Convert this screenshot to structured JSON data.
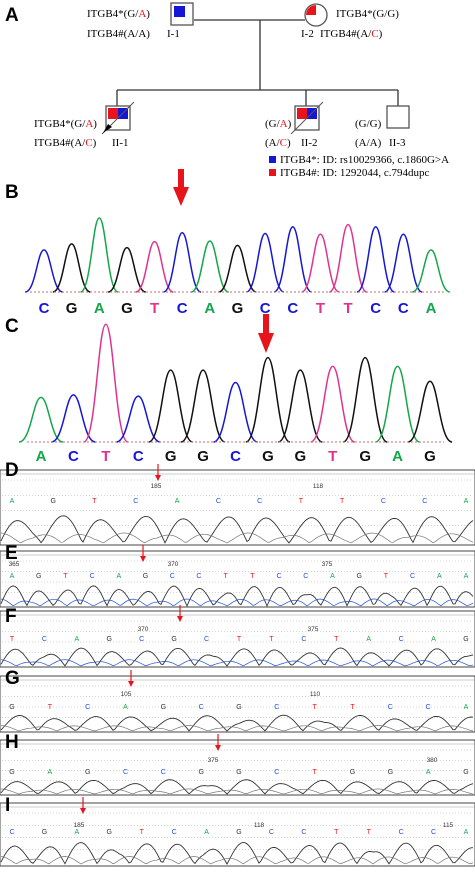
{
  "colors": {
    "red": "#e8141b",
    "blue": "#1616d6",
    "green": "#14a64a",
    "black": "#111111",
    "pink": "#e0338f",
    "c_blue": "#1f4fd6"
  },
  "panels": {
    "A": "A",
    "B": "B",
    "C": "C",
    "D": "D",
    "E": "E",
    "F": "F",
    "G": "G",
    "H": "H",
    "I": "I"
  },
  "pedigree": {
    "I1": {
      "id": "I-1",
      "l1_pre": "ITGB4*(G/",
      "l1_red": "A",
      "l1_post": ")",
      "l2_pre": "ITGB4#(A/A)",
      "l2_red": "",
      "l2_post": ""
    },
    "I2": {
      "id": "I-2",
      "l1_pre": "ITGB4*(G/G)",
      "l1_red": "",
      "l1_post": "",
      "l2_pre": "ITGB4#(A/",
      "l2_red": "C",
      "l2_post": ")"
    },
    "II1": {
      "id": "II-1",
      "l1_pre": "ITGB4*(G/",
      "l1_red": "A",
      "l1_post": ")",
      "l2_pre": "ITGB4#(A/",
      "l2_red": "C",
      "l2_post": ")"
    },
    "II2": {
      "id": "II-2",
      "l1_pre": "(G/",
      "l1_red": "A",
      "l1_post": ")",
      "l2_pre": "(A/",
      "l2_red": "C",
      "l2_post": ")"
    },
    "II3": {
      "id": "II-3",
      "l1": "(G/G)",
      "l2": "(A/A)"
    },
    "legend": [
      {
        "color": "blue",
        "text": "ITGB4*: ID: rs10029366, c.1860G>A"
      },
      {
        "color": "red",
        "text": "ITGB4#: ID: 1292044, c.794dupc"
      }
    ]
  },
  "seqB": [
    "C",
    "G",
    "A",
    "G",
    "T",
    "C",
    "A",
    "G",
    "C",
    "C",
    "T",
    "T",
    "C",
    "C",
    "A"
  ],
  "seqC": [
    "A",
    "C",
    "T",
    "C",
    "G",
    "G",
    "C",
    "G",
    "G",
    "T",
    "G",
    "A",
    "G"
  ],
  "small_traces": {
    "D": {
      "nums": [
        "185",
        "118"
      ],
      "bases": [
        "A",
        "G",
        "T",
        "C",
        "A",
        "C",
        "C",
        "T",
        "T",
        "C",
        "C",
        "A"
      ]
    },
    "E": {
      "nums": [
        "365",
        "370",
        "375"
      ],
      "bases": [
        "A",
        "G",
        "T",
        "C",
        "A",
        "G",
        "C",
        "C",
        "T",
        "T",
        "C",
        "C",
        "A",
        "G",
        "T",
        "C",
        "A",
        "A"
      ]
    },
    "F": {
      "nums": [
        "370",
        "375"
      ],
      "bases": [
        "T",
        "C",
        "A",
        "G",
        "C",
        "G",
        "C",
        "T",
        "T",
        "C",
        "T",
        "A",
        "C",
        "A",
        "G"
      ]
    },
    "G": {
      "nums": [
        "105",
        "110"
      ],
      "bases": [
        "G",
        "T",
        "C",
        "A",
        "G",
        "C",
        "G",
        "C",
        "T",
        "T",
        "C",
        "C",
        "A"
      ]
    },
    "H": {
      "nums": [
        "375",
        "380"
      ],
      "bases": [
        "G",
        "A",
        "G",
        "C",
        "C",
        "G",
        "G",
        "C",
        "T",
        "G",
        "G",
        "A",
        "G"
      ]
    },
    "I": {
      "nums": [
        "185",
        "118",
        "115"
      ],
      "bases": [
        "C",
        "G",
        "A",
        "G",
        "T",
        "C",
        "A",
        "G",
        "C",
        "C",
        "T",
        "T",
        "C",
        "C",
        "A"
      ]
    }
  }
}
